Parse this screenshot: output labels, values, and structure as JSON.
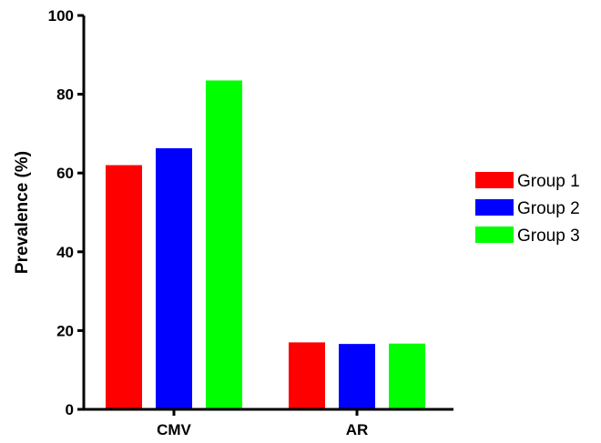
{
  "chart_data": {
    "type": "bar",
    "categories": [
      "CMV",
      "AR"
    ],
    "series": [
      {
        "name": "Group 1",
        "color": "#ff0000",
        "values": [
          62,
          17
        ]
      },
      {
        "name": "Group 2",
        "color": "#0000ff",
        "values": [
          66.3,
          16.6
        ]
      },
      {
        "name": "Group 3",
        "color": "#00ff00",
        "values": [
          83.5,
          16.7
        ]
      }
    ],
    "title": "",
    "xlabel": "",
    "ylabel": "Prevalence (%)",
    "ylim": [
      0,
      100
    ],
    "yticks": [
      0,
      20,
      40,
      60,
      80,
      100
    ],
    "grid": false,
    "legend": "right"
  }
}
